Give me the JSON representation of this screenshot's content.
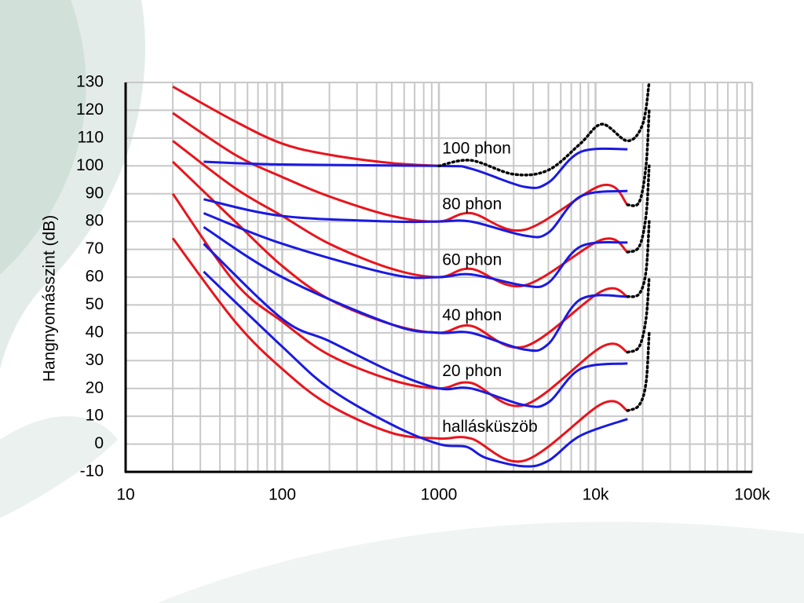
{
  "chart_data": {
    "type": "line",
    "ylabel": "Hangnyomásszint (dB)",
    "xscale": "log",
    "xlim": [
      10,
      100000
    ],
    "ylim": [
      -10,
      130
    ],
    "xticks": [
      10,
      100,
      1000,
      {
        "value": 10000,
        "label": "10k"
      },
      {
        "value": 100000,
        "label": "100k"
      }
    ],
    "xminorticks": [
      20,
      30,
      40,
      50,
      60,
      70,
      80,
      90,
      200,
      300,
      400,
      500,
      600,
      700,
      800,
      900,
      2000,
      3000,
      4000,
      5000,
      6000,
      7000,
      8000,
      9000,
      20000,
      30000,
      40000,
      50000,
      60000,
      70000,
      80000,
      90000
    ],
    "yticks": [
      -10,
      0,
      10,
      20,
      30,
      40,
      50,
      60,
      70,
      80,
      90,
      100,
      110,
      120,
      130
    ],
    "grid": true,
    "series": [
      {
        "color": "#e8141c",
        "style": "solid",
        "x": [
          20,
          50,
          100,
          200,
          500,
          1000,
          1600,
          3500,
          11000,
          16000
        ],
        "values": [
          74,
          44,
          27,
          14,
          4,
          2,
          2,
          -6,
          14.5,
          12
        ]
      },
      {
        "color": "#e8141c",
        "style": "solid",
        "x": [
          20,
          50,
          100,
          200,
          500,
          1000,
          1600,
          3500,
          11000,
          16000
        ],
        "values": [
          90,
          58,
          44,
          32,
          23,
          20,
          22,
          14,
          35,
          33
        ]
      },
      {
        "color": "#e8141c",
        "style": "solid",
        "x": [
          20,
          50,
          100,
          200,
          500,
          1000,
          1600,
          3500,
          11000,
          16000
        ],
        "values": [
          101.5,
          80,
          64,
          52,
          43,
          40,
          42.5,
          35,
          55,
          53
        ]
      },
      {
        "color": "#e8141c",
        "style": "solid",
        "x": [
          20,
          50,
          100,
          200,
          500,
          1000,
          1600,
          3500,
          11000,
          16000
        ],
        "values": [
          109,
          92,
          82,
          72,
          63,
          60,
          63,
          57,
          73.5,
          69
        ]
      },
      {
        "color": "#e8141c",
        "style": "solid",
        "x": [
          20,
          50,
          100,
          200,
          500,
          1000,
          1600,
          3500,
          11000,
          16000
        ],
        "values": [
          119,
          104,
          96,
          89,
          82,
          80,
          83,
          77,
          93,
          86
        ]
      },
      {
        "color": "#e8141c",
        "style": "solid",
        "x": [
          20,
          50,
          100,
          200,
          500,
          1000
        ],
        "values": [
          128.5,
          116,
          108,
          104,
          101,
          100
        ]
      },
      {
        "color": "#1a1ae0",
        "style": "solid",
        "x": [
          31.5,
          100,
          200,
          500,
          1000,
          1500,
          2000,
          3500,
          5000,
          8000,
          16000
        ],
        "values": [
          62,
          35,
          20,
          7,
          0,
          -1,
          -5,
          -8,
          -6,
          3,
          9
        ]
      },
      {
        "color": "#1a1ae0",
        "style": "solid",
        "x": [
          31.5,
          100,
          200,
          500,
          1000,
          1600,
          3500,
          5000,
          8000,
          16000
        ],
        "values": [
          72,
          45,
          37,
          26,
          20,
          20,
          14,
          15,
          27,
          29
        ]
      },
      {
        "color": "#1a1ae0",
        "style": "solid",
        "x": [
          31.5,
          100,
          500,
          1000,
          1600,
          3500,
          5000,
          8000,
          16000
        ],
        "values": [
          78,
          60,
          43,
          40,
          40,
          34,
          36,
          52,
          53
        ]
      },
      {
        "color": "#1a1ae0",
        "style": "solid",
        "x": [
          31.5,
          100,
          500,
          1000,
          1600,
          3500,
          5000,
          8000,
          16000
        ],
        "values": [
          83,
          72,
          61,
          60,
          61,
          57,
          58,
          71,
          72.5
        ]
      },
      {
        "color": "#1a1ae0",
        "style": "solid",
        "x": [
          31.5,
          100,
          500,
          1000,
          1600,
          3500,
          5000,
          8000,
          16000
        ],
        "values": [
          88,
          82,
          80,
          80,
          80,
          75,
          76,
          89,
          91
        ]
      },
      {
        "color": "#1a1ae0",
        "style": "solid",
        "x": [
          31.5,
          100,
          1000,
          1600,
          3500,
          5000,
          8000,
          16000
        ],
        "values": [
          101.5,
          100.5,
          100,
          99,
          92.5,
          94,
          105,
          106
        ]
      },
      {
        "color": "#000000",
        "style": "dotted",
        "x": [
          1000,
          1600,
          3000,
          5000,
          8000,
          11000,
          16000,
          20000,
          22000
        ],
        "values": [
          100,
          102,
          97,
          98.5,
          108,
          115,
          109,
          115,
          130
        ]
      },
      {
        "color": "#000000",
        "style": "dotted",
        "x": [
          16000,
          19000,
          21000,
          22000
        ],
        "values": [
          86,
          87,
          100,
          120
        ]
      },
      {
        "color": "#000000",
        "style": "dotted",
        "x": [
          16000,
          19000,
          21000,
          22000
        ],
        "values": [
          69,
          71,
          82,
          100
        ]
      },
      {
        "color": "#000000",
        "style": "dotted",
        "x": [
          16000,
          19000,
          21000,
          22000
        ],
        "values": [
          53,
          54,
          62,
          80
        ]
      },
      {
        "color": "#000000",
        "style": "dotted",
        "x": [
          16000,
          19000,
          21000,
          22000
        ],
        "values": [
          33,
          35,
          45,
          60
        ]
      },
      {
        "color": "#000000",
        "style": "dotted",
        "x": [
          16000,
          19000,
          21000,
          22000
        ],
        "values": [
          12,
          14,
          22,
          40
        ]
      }
    ],
    "annotations": [
      {
        "text": "100 phon",
        "x": 1050,
        "y": 106
      },
      {
        "text": "80 phon",
        "x": 1050,
        "y": 86
      },
      {
        "text": "60 phon",
        "x": 1050,
        "y": 66
      },
      {
        "text": "40 phon",
        "x": 1050,
        "y": 46
      },
      {
        "text": "20 phon",
        "x": 1050,
        "y": 26
      },
      {
        "text": "hallásküszöb",
        "x": 1050,
        "y": 6
      }
    ]
  }
}
